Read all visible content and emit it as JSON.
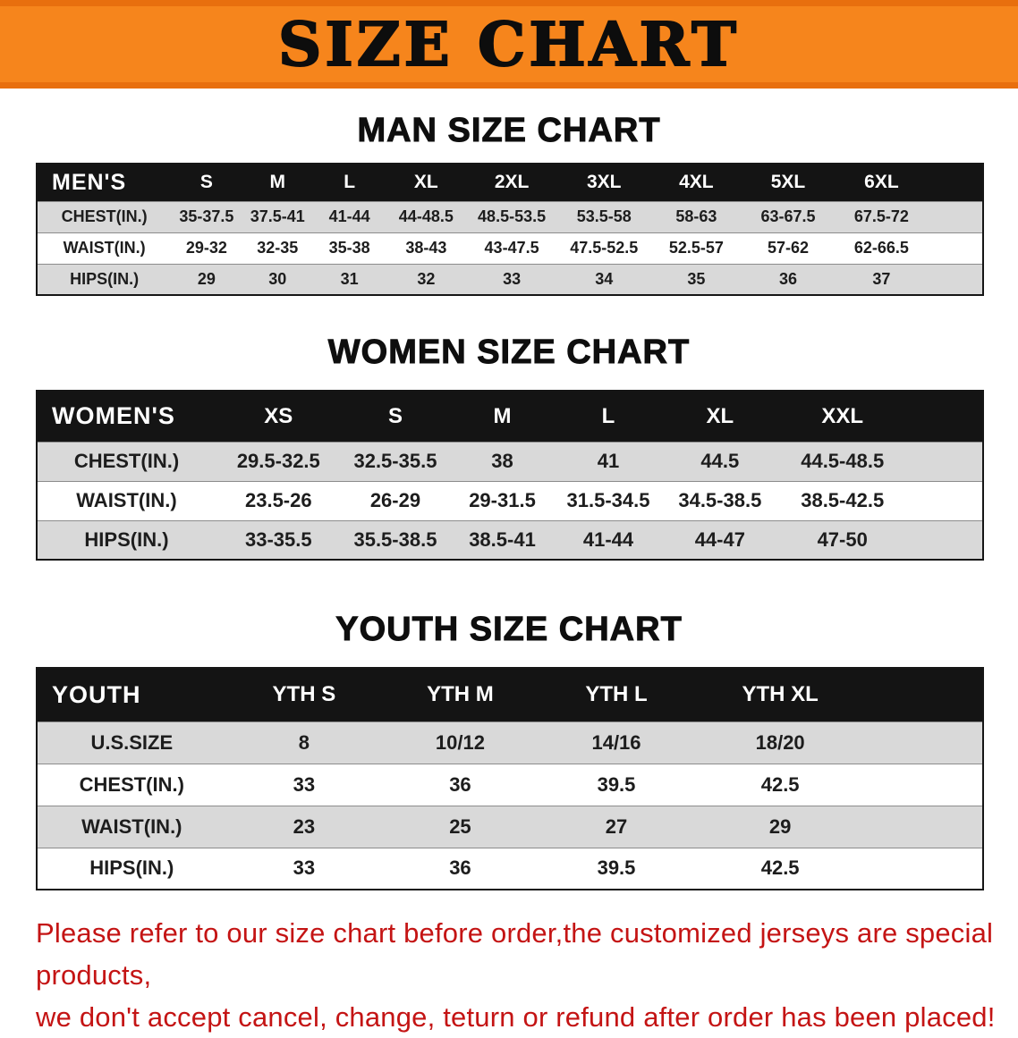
{
  "banner": {
    "title": "SIZE CHART"
  },
  "colors": {
    "banner_orange": "#f6851c",
    "banner_edge_orange": "#e86f0e",
    "table_header_black": "#141414",
    "row_gray": "#d9d9d9",
    "row_white": "#ffffff",
    "disclaimer_red": "#c41414"
  },
  "chart_data": [
    {
      "type": "table",
      "title": "MAN SIZE CHART",
      "columns": [
        "MEN'S",
        "S",
        "M",
        "L",
        "XL",
        "2XL",
        "3XL",
        "4XL",
        "5XL",
        "6XL"
      ],
      "rows": [
        [
          "CHEST(IN.)",
          "35-37.5",
          "37.5-41",
          "41-44",
          "44-48.5",
          "48.5-53.5",
          "53.5-58",
          "58-63",
          "63-67.5",
          "67.5-72"
        ],
        [
          "WAIST(IN.)",
          "29-32",
          "32-35",
          "35-38",
          "38-43",
          "43-47.5",
          "47.5-52.5",
          "52.5-57",
          "57-62",
          "62-66.5"
        ],
        [
          "HIPS(IN.)",
          "29",
          "30",
          "31",
          "32",
          "33",
          "34",
          "35",
          "36",
          "37"
        ]
      ]
    },
    {
      "type": "table",
      "title": "WOMEN SIZE CHART",
      "columns": [
        "WOMEN'S",
        "XS",
        "S",
        "M",
        "L",
        "XL",
        "XXL"
      ],
      "rows": [
        [
          "CHEST(IN.)",
          "29.5-32.5",
          "32.5-35.5",
          "38",
          "41",
          "44.5",
          "44.5-48.5"
        ],
        [
          "WAIST(IN.)",
          "23.5-26",
          "26-29",
          "29-31.5",
          "31.5-34.5",
          "34.5-38.5",
          "38.5-42.5"
        ],
        [
          "HIPS(IN.)",
          "33-35.5",
          "35.5-38.5",
          "38.5-41",
          "41-44",
          "44-47",
          "47-50"
        ]
      ]
    },
    {
      "type": "table",
      "title": "YOUTH SIZE CHART",
      "columns": [
        "YOUTH",
        "YTH S",
        "YTH M",
        "YTH L",
        "YTH XL"
      ],
      "rows": [
        [
          "U.S.SIZE",
          "8",
          "10/12",
          "14/16",
          "18/20"
        ],
        [
          "CHEST(IN.)",
          "33",
          "36",
          "39.5",
          "42.5"
        ],
        [
          "WAIST(IN.)",
          "23",
          "25",
          "27",
          "29"
        ],
        [
          "HIPS(IN.)",
          "33",
          "36",
          "39.5",
          "42.5"
        ]
      ]
    }
  ],
  "footer": {
    "line1": "Please refer to our size chart before order,the customized jerseys are special products,",
    "line2": "we don't accept cancel, change, teturn or refund after order has been placed!"
  }
}
